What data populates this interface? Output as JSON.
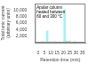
{
  "chart_data": {
    "type": "bar",
    "ylabel": "Total ionic current\n(arbitrary units)",
    "xlabel": "Retention time (min)",
    "annotations": [
      "Apolar column\nheated between\n60 and 300 °C"
    ],
    "x": [
      3.2,
      5.0,
      7.2,
      9.5,
      11.2,
      13.0,
      15.0,
      17.0,
      19.0,
      21.0,
      23.0,
      25.0,
      27.0,
      29.0,
      31.0,
      33.0
    ],
    "values": [
      350,
      180,
      3600,
      280,
      180,
      300,
      130,
      250,
      130,
      10200,
      450,
      580,
      180,
      350,
      180,
      130
    ],
    "color": "#aaf0f0",
    "xlim": [
      0,
      35
    ],
    "ylim": [
      0,
      12000
    ],
    "xticks": [
      0,
      5,
      10,
      15,
      20,
      25,
      30,
      35
    ],
    "yticks": [
      {
        "value": 2000,
        "label": "2,000"
      },
      {
        "value": 4000,
        "label": "4,000"
      },
      {
        "value": 6000,
        "label": "6,000"
      },
      {
        "value": 8000,
        "label": "8,000"
      },
      {
        "value": 10000,
        "label": "10,000"
      }
    ],
    "grid": false
  }
}
